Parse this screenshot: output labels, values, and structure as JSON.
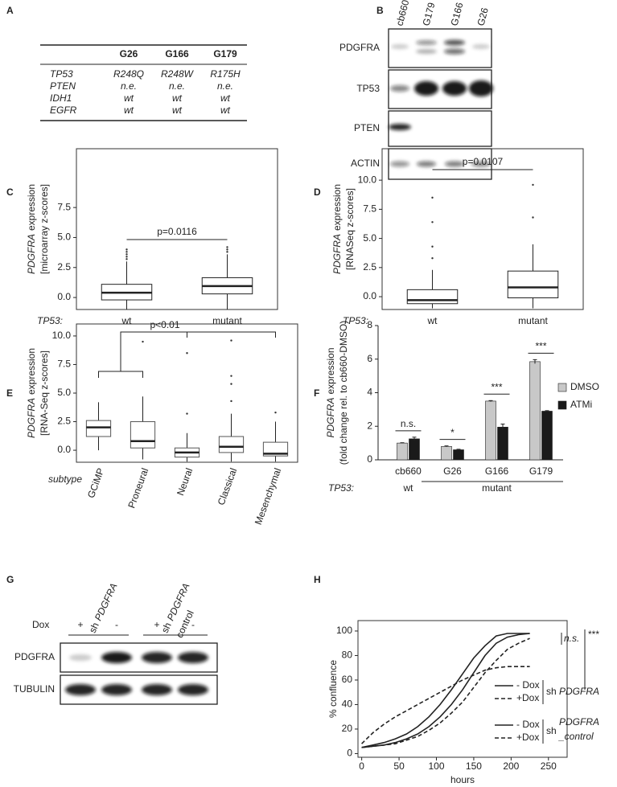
{
  "panels": [
    "A",
    "B",
    "C",
    "D",
    "E",
    "F",
    "G",
    "H"
  ],
  "table": {
    "header": [
      "G26",
      "G166",
      "G179"
    ],
    "rows": [
      [
        "TP53",
        "R248Q",
        "R248W",
        "R175H"
      ],
      [
        "PTEN",
        "n.e.",
        "n.e.",
        "n.e."
      ],
      [
        "IDH1",
        "wt",
        "wt",
        "wt"
      ],
      [
        "EGFR",
        "wt",
        "wt",
        "wt"
      ]
    ]
  },
  "blot_b": {
    "lanes": [
      "cb660",
      "G179",
      "G166",
      "G26"
    ],
    "rows": [
      "PDGFRA",
      "TP53",
      "PTEN",
      "ACTIN"
    ]
  },
  "chart_data": [
    {
      "type": "box",
      "ylabel_gene": "PDGFRA",
      "ylabel": "expression",
      "ylabel2": "[microarray z-scores]",
      "xlabel": "TP53:",
      "categories": [
        "wt",
        "mutant"
      ],
      "boxes": [
        {
          "whisker_low": -1,
          "q1": -0.2,
          "median": 0.4,
          "q3": 1.1,
          "whisker_high": 3,
          "outliers": [
            3.2,
            3.4,
            3.6,
            3.8,
            4
          ]
        },
        {
          "whisker_low": -1,
          "q1": 0.3,
          "median": 0.95,
          "q3": 1.65,
          "whisker_high": 3.6,
          "outliers": [
            3.8,
            4,
            4.2
          ]
        }
      ],
      "annotation": "p=0.0116",
      "ylim": [
        -1,
        12.4
      ],
      "yticks": [
        {
          "value": 0,
          "label": "0.0"
        },
        2.5,
        {
          "value": 5,
          "label": "5.0"
        },
        7.5
      ]
    },
    {
      "type": "box",
      "ylabel_gene": "PDGFRA",
      "ylabel": "expression",
      "ylabel2": "[RNASeq z-scores]",
      "xlabel": "TP53:",
      "categories": [
        "wt",
        "mutant"
      ],
      "boxes": [
        {
          "whisker_low": -1,
          "q1": -0.6,
          "median": -0.3,
          "q3": 0.6,
          "whisker_high": 2.3,
          "outliers": [
            3.3,
            4.3,
            6.4,
            8.5
          ]
        },
        {
          "whisker_low": -1,
          "q1": -0.1,
          "median": 0.8,
          "q3": 2.2,
          "whisker_high": 4.5,
          "outliers": [
            6.8,
            9.6
          ]
        }
      ],
      "annotation": "p=0.0107",
      "ylim": [
        -1.1,
        12.7
      ],
      "yticks": [
        {
          "value": 0,
          "label": "0.0"
        },
        2.5,
        {
          "value": 5,
          "label": "5.0"
        },
        7.5,
        {
          "value": 10,
          "label": "10.0"
        }
      ]
    },
    {
      "type": "box",
      "ylabel_gene": "PDGFRA",
      "ylabel": "expression",
      "ylabel2": "[RNA-Seq z-scores]",
      "xlabel": "subtype",
      "categories": [
        "GCiMP",
        "Proneural",
        "Neural",
        "Classical",
        "Mesenchymal"
      ],
      "boxes": [
        {
          "whisker_low": 0,
          "q1": 1.2,
          "median": 2,
          "q3": 2.6,
          "whisker_high": 4.2,
          "outliers": []
        },
        {
          "whisker_low": -0.8,
          "q1": 0.2,
          "median": 0.8,
          "q3": 2.5,
          "whisker_high": 4.7,
          "outliers": [
            9.5
          ]
        },
        {
          "whisker_low": -1,
          "q1": -0.6,
          "median": -0.2,
          "q3": 0.2,
          "whisker_high": 1.5,
          "outliers": [
            3.2,
            8.5
          ]
        },
        {
          "whisker_low": -1,
          "q1": -0.2,
          "median": 0.3,
          "q3": 1.2,
          "whisker_high": 3.2,
          "outliers": [
            4.3,
            5.8,
            6.5,
            9.6
          ]
        },
        {
          "whisker_low": -1,
          "q1": -0.5,
          "median": -0.3,
          "q3": 0.7,
          "whisker_high": 2.5,
          "outliers": [
            3.3
          ]
        }
      ],
      "annotation": "p<0.01",
      "ylim": [
        -1.05,
        11.05
      ],
      "yticks": [
        {
          "value": 0,
          "label": "0.0"
        },
        2.5,
        {
          "value": 5,
          "label": "5.0"
        },
        7.5,
        {
          "value": 10,
          "label": "10.0"
        }
      ]
    },
    {
      "type": "bar",
      "ylabel_gene": "PDGFRA",
      "ylabel": "expression",
      "ylabel2": "(fold change rel. to cb660-DMSO)",
      "xlabel": "TP53:",
      "group_labels": [
        "wt",
        "mutant"
      ],
      "categories": [
        "cb660",
        "G26",
        "G166",
        "G179"
      ],
      "series": [
        {
          "name": "DMSO",
          "color": "#c8c8c8",
          "values": [
            1,
            0.8,
            3.5,
            5.85
          ],
          "errors": [
            0.02,
            0.03,
            0.03,
            0.12
          ]
        },
        {
          "name": "ATMi",
          "color": "#1a1a1a",
          "values": [
            1.25,
            0.6,
            1.95,
            2.9
          ],
          "errors": [
            0.1,
            0.03,
            0.18,
            0.03
          ]
        }
      ],
      "annotations": [
        "n.s.",
        "*",
        "***",
        "***"
      ],
      "ylim": [
        0,
        8
      ],
      "yticks": [
        0,
        2,
        4,
        6,
        8
      ]
    },
    {
      "type": "line",
      "ylabel": "% confluence",
      "xlabel": "hours",
      "x": [
        0,
        15,
        30,
        45,
        60,
        75,
        90,
        105,
        120,
        135,
        150,
        165,
        180,
        195,
        210,
        225
      ],
      "series": [
        {
          "name": "- Dox",
          "color": "#e03030",
          "dash": false,
          "values": [
            5,
            7,
            9,
            12,
            16,
            22,
            30,
            40,
            52,
            65,
            78,
            88,
            96,
            98,
            98,
            98
          ]
        },
        {
          "name": "+Dox",
          "color": "#e03030",
          "dash": true,
          "values": [
            8,
            17,
            24,
            30,
            35,
            40,
            45,
            50,
            55,
            60,
            64,
            68,
            70,
            71,
            71,
            71
          ]
        },
        {
          "name": "- Dox",
          "color": "#111111",
          "dash": false,
          "values": [
            5,
            6,
            7,
            9,
            12,
            16,
            22,
            30,
            40,
            52,
            66,
            80,
            90,
            95,
            97,
            98
          ]
        },
        {
          "name": "+Dox",
          "color": "#111111",
          "dash": true,
          "values": [
            5,
            6,
            7,
            8,
            11,
            14,
            19,
            25,
            33,
            42,
            54,
            66,
            76,
            85,
            90,
            94
          ]
        }
      ],
      "legend_groups": [
        {
          "prefix": "sh",
          "label": "PDGFRA",
          "color": "#e03030"
        },
        {
          "prefix": "sh",
          "label": "PDGFRA",
          "label2": "_control",
          "color": "#111111"
        }
      ],
      "annotations": [
        "n.s.",
        "***"
      ],
      "xlim": [
        -5,
        275
      ],
      "xticks": [
        0,
        50,
        100,
        150,
        200,
        250
      ],
      "ylim": [
        -3,
        108.5
      ],
      "yticks": [
        0,
        20,
        40,
        60,
        80,
        100
      ]
    }
  ],
  "blot_g": {
    "lane_groups": [
      {
        "prefix": "sh",
        "gene": "PDGFRA"
      },
      {
        "prefix": "sh",
        "gene": "PDGFRA",
        "suffix": "control"
      }
    ],
    "treatment": "Dox",
    "signs": [
      "+",
      "-",
      "+",
      "-"
    ],
    "rows": [
      "PDGFRA",
      "TUBULIN"
    ]
  }
}
